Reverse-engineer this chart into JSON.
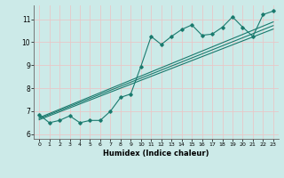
{
  "xlabel": "Humidex (Indice chaleur)",
  "background_color": "#cceae8",
  "grid_color": "#e8c8c8",
  "line_color": "#1a7a6e",
  "xlim": [
    -0.5,
    23.5
  ],
  "ylim": [
    5.8,
    11.6
  ],
  "yticks": [
    6,
    7,
    8,
    9,
    10,
    11
  ],
  "xticks": [
    0,
    1,
    2,
    3,
    4,
    5,
    6,
    7,
    8,
    9,
    10,
    11,
    12,
    13,
    14,
    15,
    16,
    17,
    18,
    19,
    20,
    21,
    22,
    23
  ],
  "scatter_x": [
    0,
    1,
    2,
    3,
    4,
    5,
    6,
    7,
    8,
    9,
    10,
    11,
    12,
    13,
    14,
    15,
    16,
    17,
    18,
    19,
    20,
    21,
    22,
    23
  ],
  "scatter_y": [
    6.85,
    6.5,
    6.6,
    6.8,
    6.5,
    6.6,
    6.6,
    7.0,
    7.6,
    7.75,
    8.95,
    10.25,
    9.9,
    10.25,
    10.55,
    10.75,
    10.3,
    10.35,
    10.65,
    11.1,
    10.65,
    10.25,
    11.2,
    11.35
  ],
  "reg_lines": [
    {
      "x": [
        0,
        23
      ],
      "y": [
        6.68,
        10.72
      ]
    },
    {
      "x": [
        0,
        23
      ],
      "y": [
        6.72,
        10.88
      ]
    },
    {
      "x": [
        0,
        23
      ],
      "y": [
        6.63,
        10.57
      ]
    }
  ]
}
